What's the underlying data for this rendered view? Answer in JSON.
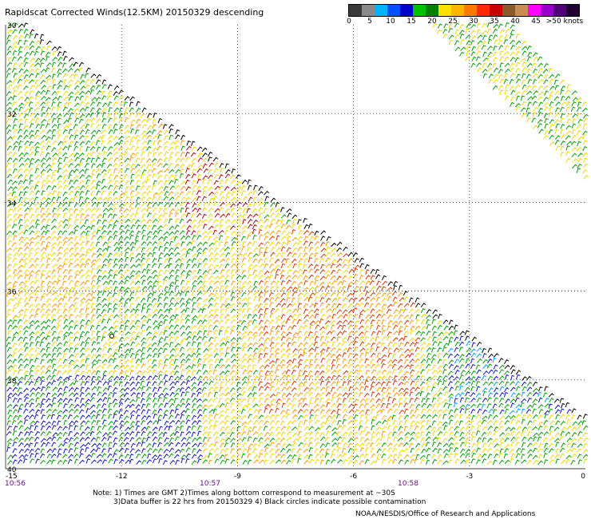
{
  "title": "Rapidscat Corrected Winds(12.5KM) 20150329 descending",
  "legend": {
    "colors": [
      "#3a3a3a",
      "#8a8a8a",
      "#00b4ff",
      "#0050ff",
      "#0000c8",
      "#00c000",
      "#008000",
      "#ffe000",
      "#ffb400",
      "#ff7800",
      "#ff2800",
      "#c80000",
      "#8c5a28",
      "#c88c50",
      "#ff00ff",
      "#9600c8",
      "#500078",
      "#1e0032"
    ],
    "labels": [
      "0",
      "5",
      "10",
      "15",
      "20",
      "25",
      "30",
      "35",
      "40",
      "45",
      ">50 knots"
    ]
  },
  "axes": {
    "lat_labels": [
      "30",
      "32",
      "34",
      "36",
      "38",
      "40"
    ],
    "lon_labels": [
      "-15",
      "-12",
      "-9",
      "-6",
      "-3",
      "0"
    ],
    "time_labels": [
      "10:56",
      "10:57",
      "10:58"
    ]
  },
  "notes": [
    "Note: 1) Times are GMT 2)Times along bottom correspond to measurement at ~30S",
    "3)Data buffer is 22 hrs from 20150329 4) Black circles indicate possible contamination"
  ],
  "credit": "NOAA/NESDIS/Office of Research and Applications"
}
